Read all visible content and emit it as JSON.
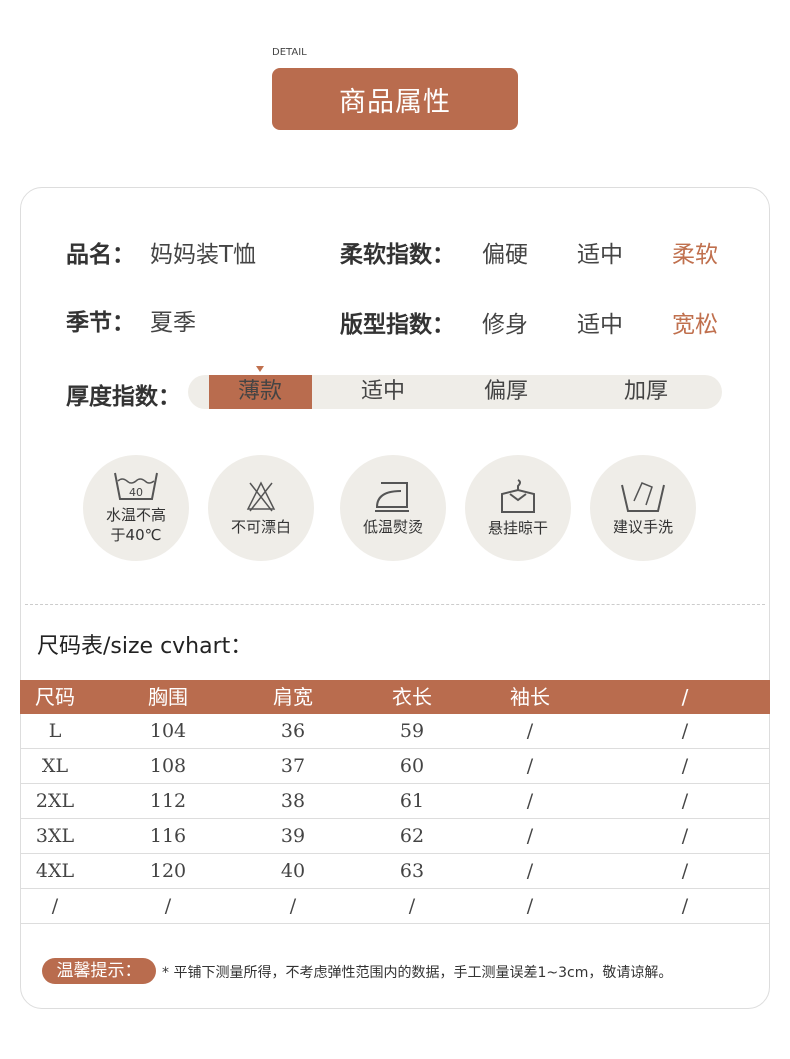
{
  "header": {
    "detail": "DETAIL",
    "title": "商品属性"
  },
  "attributes": {
    "name_label": "品名：",
    "name_value": "妈妈装T恤",
    "season_label": "季节：",
    "season_value": "夏季",
    "softness": {
      "label": "柔软指数：",
      "options": [
        "偏硬",
        "适中",
        "柔软"
      ],
      "selected": "柔软"
    },
    "fit": {
      "label": "版型指数：",
      "options": [
        "修身",
        "适中",
        "宽松"
      ],
      "selected": "宽松"
    },
    "thickness": {
      "label": "厚度指数：",
      "options": [
        "薄款",
        "适中",
        "偏厚",
        "加厚"
      ],
      "selected": "薄款"
    }
  },
  "care": [
    {
      "icon": "wash-40-icon",
      "icon_text": "40",
      "text1": "水温不高",
      "text2": "于40℃"
    },
    {
      "icon": "no-bleach-icon",
      "text1": "不可漂白",
      "text2": ""
    },
    {
      "icon": "iron-low-icon",
      "text1": "低温熨烫",
      "text2": ""
    },
    {
      "icon": "hang-dry-icon",
      "text1": "悬挂晾干",
      "text2": ""
    },
    {
      "icon": "hand-wash-icon",
      "text1": "建议手洗",
      "text2": ""
    }
  ],
  "size_chart": {
    "title": "尺码表/size cvhart：",
    "headers": [
      "尺码",
      "胸围",
      "肩宽",
      "衣长",
      "袖长",
      "/"
    ],
    "rows": [
      [
        "L",
        "104",
        "36",
        "59",
        "/",
        "/"
      ],
      [
        "XL",
        "108",
        "37",
        "60",
        "/",
        "/"
      ],
      [
        "2XL",
        "112",
        "38",
        "61",
        "/",
        "/"
      ],
      [
        "3XL",
        "116",
        "39",
        "62",
        "/",
        "/"
      ],
      [
        "4XL",
        "120",
        "40",
        "63",
        "/",
        "/"
      ],
      [
        "/",
        "/",
        "/",
        "/",
        "/",
        "/"
      ]
    ]
  },
  "tip": {
    "label": "温馨提示：",
    "text": "* 平铺下测量所得，不考虑弹性范围内的数据，手工测量误差1~3cm，敬请谅解。"
  },
  "colors": {
    "accent": "#b96c4e",
    "circle_bg": "#efede8"
  }
}
